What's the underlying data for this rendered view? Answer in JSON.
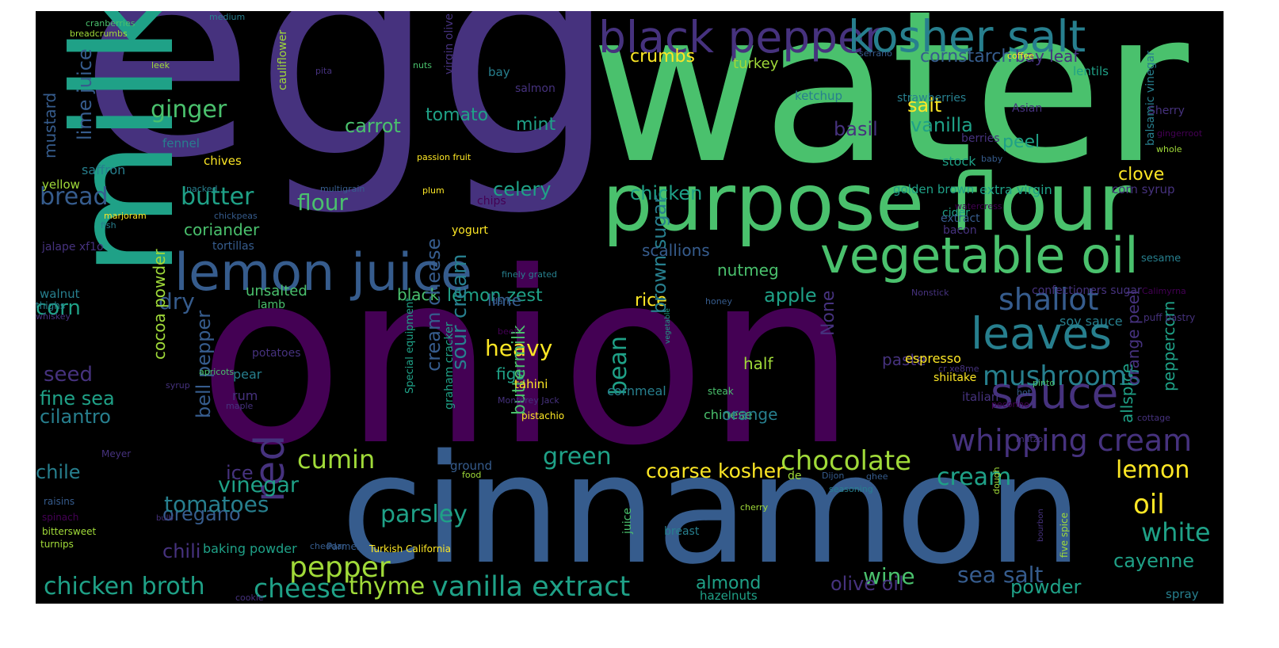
{
  "background": "#000000",
  "palette": {
    "p": "#440154",
    "i": "#46327e",
    "b": "#365c8d",
    "t": "#277f8e",
    "g": "#1fa187",
    "l": "#4ac16d",
    "y": "#a0da39",
    "z": "#fde725"
  },
  "words": [
    {
      "text": "egg",
      "size": 360,
      "color": "i"
    },
    {
      "text": "water",
      "size": 265,
      "color": "l"
    },
    {
      "text": "onion",
      "size": 300,
      "color": "p"
    },
    {
      "text": "milk",
      "size": 175,
      "color": "g",
      "rotate": true
    },
    {
      "text": "cinnamon",
      "size": 190,
      "color": "b"
    },
    {
      "text": "purpose flour",
      "size": 100,
      "color": "l"
    },
    {
      "text": "black pepper",
      "size": 55,
      "color": "i"
    },
    {
      "text": "kosher salt",
      "size": 55,
      "color": "t"
    },
    {
      "text": "lemon juice",
      "size": 65,
      "color": "b"
    },
    {
      "text": "vegetable oil",
      "size": 62,
      "color": "l"
    },
    {
      "text": "leaves",
      "size": 55,
      "color": "t"
    },
    {
      "text": "sauce",
      "size": 55,
      "color": "i"
    },
    {
      "text": "whipping cream",
      "size": 38,
      "color": "i"
    },
    {
      "text": "shallot",
      "size": 38,
      "color": "b"
    },
    {
      "text": "mushrooms",
      "size": 34,
      "color": "t"
    },
    {
      "text": "chocolate",
      "size": 34,
      "color": "y"
    },
    {
      "text": "vanilla extract",
      "size": 35,
      "color": "g"
    },
    {
      "text": "chicken broth",
      "size": 30,
      "color": "g"
    },
    {
      "text": "red",
      "size": 52,
      "color": "i",
      "rotate": true
    },
    {
      "text": "cheese",
      "size": 33,
      "color": "g"
    },
    {
      "text": "cumin",
      "size": 32,
      "color": "y"
    },
    {
      "text": "green",
      "size": 30,
      "color": "g"
    },
    {
      "text": "parsley",
      "size": 30,
      "color": "g"
    },
    {
      "text": "vinegar",
      "size": 27,
      "color": "g"
    },
    {
      "text": "coarse kosher",
      "size": 25,
      "color": "z"
    },
    {
      "text": "cream",
      "size": 30,
      "color": "g"
    },
    {
      "text": "lemon",
      "size": 30,
      "color": "z"
    },
    {
      "text": "oil",
      "size": 34,
      "color": "z"
    },
    {
      "text": "white",
      "size": 32,
      "color": "g"
    },
    {
      "text": "cayenne",
      "size": 24,
      "color": "g"
    },
    {
      "text": "sea salt",
      "size": 28,
      "color": "b"
    },
    {
      "text": "powder",
      "size": 24,
      "color": "g"
    },
    {
      "text": "wine",
      "size": 28,
      "color": "l"
    },
    {
      "text": "olive oil",
      "size": 24,
      "color": "i"
    },
    {
      "text": "almond",
      "size": 22,
      "color": "g"
    },
    {
      "text": "thyme",
      "size": 30,
      "color": "y"
    },
    {
      "text": "oregano",
      "size": 24,
      "color": "b"
    },
    {
      "text": "chili",
      "size": 24,
      "color": "i"
    },
    {
      "text": "pepper",
      "size": 36,
      "color": "y"
    },
    {
      "text": "ginger",
      "size": 30,
      "color": "l"
    },
    {
      "text": "bread",
      "size": 30,
      "color": "b"
    },
    {
      "text": "butter",
      "size": 30,
      "color": "g"
    },
    {
      "text": "corn",
      "size": 26,
      "color": "g"
    },
    {
      "text": "seed",
      "size": 26,
      "color": "i"
    },
    {
      "text": "fine sea",
      "size": 24,
      "color": "g"
    },
    {
      "text": "cilantro",
      "size": 24,
      "color": "t"
    },
    {
      "text": "chile",
      "size": 24,
      "color": "t"
    },
    {
      "text": "ice",
      "size": 24,
      "color": "i"
    },
    {
      "text": "tomatoes",
      "size": 28,
      "color": "t"
    },
    {
      "text": "carrot",
      "size": 24,
      "color": "l"
    },
    {
      "text": "flour",
      "size": 28,
      "color": "l"
    },
    {
      "text": "celery",
      "size": 24,
      "color": "g"
    },
    {
      "text": "mint",
      "size": 22,
      "color": "g"
    },
    {
      "text": "tomato",
      "size": 22,
      "color": "g"
    },
    {
      "text": "cornstarch",
      "size": 22,
      "color": "b"
    },
    {
      "text": "bay leaf",
      "size": 20,
      "color": "i"
    },
    {
      "text": "crumbs",
      "size": 22,
      "color": "z"
    },
    {
      "text": "salt",
      "size": 24,
      "color": "z"
    },
    {
      "text": "basil",
      "size": 24,
      "color": "i"
    },
    {
      "text": "vanilla",
      "size": 24,
      "color": "g"
    },
    {
      "text": "peel",
      "size": 22,
      "color": "g"
    },
    {
      "text": "clove",
      "size": 22,
      "color": "z"
    },
    {
      "text": "coriander",
      "size": 20,
      "color": "l"
    },
    {
      "text": "chicken",
      "size": 24,
      "color": "g"
    },
    {
      "text": "nutmeg",
      "size": 20,
      "color": "l"
    },
    {
      "text": "scallions",
      "size": 20,
      "color": "b"
    },
    {
      "text": "rice",
      "size": 22,
      "color": "z"
    },
    {
      "text": "apple",
      "size": 24,
      "color": "g"
    },
    {
      "text": "lemon zest",
      "size": 22,
      "color": "g"
    },
    {
      "text": "lime",
      "size": 20,
      "color": "b"
    },
    {
      "text": "unsalted",
      "size": 18,
      "color": "l"
    },
    {
      "text": "black",
      "size": 20,
      "color": "l"
    },
    {
      "text": "dry",
      "size": 28,
      "color": "b"
    },
    {
      "text": "heavy",
      "size": 28,
      "color": "z"
    },
    {
      "text": "figs",
      "size": 20,
      "color": "g"
    },
    {
      "text": "half",
      "size": 20,
      "color": "y"
    },
    {
      "text": "paste",
      "size": 20,
      "color": "i"
    },
    {
      "text": "bean",
      "size": 30,
      "color": "g",
      "rotate": true
    },
    {
      "text": "brown sugar",
      "size": 24,
      "color": "t",
      "rotate": true
    },
    {
      "text": "sour cream",
      "size": 26,
      "color": "t",
      "rotate": true
    },
    {
      "text": "buttermilk",
      "size": 22,
      "color": "l",
      "rotate": true
    },
    {
      "text": "cream cheese",
      "size": 24,
      "color": "b",
      "rotate": true
    },
    {
      "text": "cocoa powder",
      "size": 20,
      "color": "y",
      "rotate": true
    },
    {
      "text": "bell pepper",
      "size": 24,
      "color": "b",
      "rotate": true
    },
    {
      "text": "mustard",
      "size": 20,
      "color": "b",
      "rotate": true
    },
    {
      "text": "lime juice",
      "size": 24,
      "color": "b",
      "rotate": true
    },
    {
      "text": "peppercorn",
      "size": 20,
      "color": "g",
      "rotate": true
    },
    {
      "text": "allspice",
      "size": 20,
      "color": "g",
      "rotate": true
    },
    {
      "text": "orange peel",
      "size": 20,
      "color": "i",
      "rotate": true
    },
    {
      "text": "None",
      "size": 22,
      "color": "i",
      "rotate": true
    },
    {
      "text": "balsamic vinegar",
      "size": 14,
      "color": "t",
      "rotate": true
    },
    {
      "text": "cauliflower",
      "size": 14,
      "color": "y",
      "rotate": true
    },
    {
      "text": "virgin olive",
      "size": 14,
      "color": "i",
      "rotate": true
    },
    {
      "text": "Special equipment",
      "size": 13,
      "color": "g",
      "rotate": true
    },
    {
      "text": "graham cracker",
      "size": 14,
      "color": "g",
      "rotate": true
    },
    {
      "text": "juice",
      "size": 14,
      "color": "l",
      "rotate": true
    },
    {
      "text": "five spice",
      "size": 12,
      "color": "y",
      "rotate": true
    },
    {
      "text": "dough",
      "size": 11,
      "color": "y",
      "rotate": true
    },
    {
      "text": "bourbon",
      "size": 10,
      "color": "i",
      "rotate": true
    },
    {
      "text": "vegetable",
      "size": 9,
      "color": "g",
      "rotate": true
    },
    {
      "text": "baking powder",
      "size": 16,
      "color": "g"
    },
    {
      "text": "golden brown",
      "size": 15,
      "color": "g"
    },
    {
      "text": "extra virgin",
      "size": 16,
      "color": "g"
    },
    {
      "text": "corn syrup",
      "size": 15,
      "color": "i"
    },
    {
      "text": "confectioners sugar",
      "size": 14,
      "color": "i"
    },
    {
      "text": "soy sauce",
      "size": 16,
      "color": "t"
    },
    {
      "text": "ketchup",
      "size": 15,
      "color": "t"
    },
    {
      "text": "strawberries",
      "size": 14,
      "color": "t"
    },
    {
      "text": "turkey",
      "size": 18,
      "color": "y"
    },
    {
      "text": "bacon",
      "size": 14,
      "color": "i"
    },
    {
      "text": "cider",
      "size": 14,
      "color": "g"
    },
    {
      "text": "berries",
      "size": 14,
      "color": "i"
    },
    {
      "text": "stock",
      "size": 16,
      "color": "g"
    },
    {
      "text": "extract",
      "size": 14,
      "color": "b"
    },
    {
      "text": "espresso",
      "size": 16,
      "color": "z"
    },
    {
      "text": "shiitake",
      "size": 14,
      "color": "z"
    },
    {
      "text": "steak",
      "size": 12,
      "color": "l"
    },
    {
      "text": "chinese",
      "size": 16,
      "color": "l"
    },
    {
      "text": "orange",
      "size": 20,
      "color": "t"
    },
    {
      "text": "cornmeal",
      "size": 16,
      "color": "t"
    },
    {
      "text": "pear",
      "size": 16,
      "color": "t"
    },
    {
      "text": "rum",
      "size": 16,
      "color": "i"
    },
    {
      "text": "potatoes",
      "size": 14,
      "color": "i"
    },
    {
      "text": "lamb",
      "size": 14,
      "color": "l"
    },
    {
      "text": "tortillas",
      "size": 14,
      "color": "b"
    },
    {
      "text": "jalape xf1o",
      "size": 14,
      "color": "i"
    },
    {
      "text": "walnut",
      "size": 15,
      "color": "t"
    },
    {
      "text": "thighs",
      "size": 12,
      "color": "t"
    },
    {
      "text": "Meyer",
      "size": 12,
      "color": "i"
    },
    {
      "text": "raisins",
      "size": 12,
      "color": "b"
    },
    {
      "text": "spinach",
      "size": 12,
      "color": "p"
    },
    {
      "text": "bittersweet",
      "size": 12,
      "color": "y"
    },
    {
      "text": "turnips",
      "size": 12,
      "color": "y"
    },
    {
      "text": "bulb",
      "size": 10,
      "color": "i"
    },
    {
      "text": "cheddar",
      "size": 11,
      "color": "b"
    },
    {
      "text": "Parmesan",
      "size": 12,
      "color": "b"
    },
    {
      "text": "Turkish California",
      "size": 12,
      "color": "z"
    },
    {
      "text": "cookie",
      "size": 11,
      "color": "i"
    },
    {
      "text": "hazelnuts",
      "size": 15,
      "color": "g"
    },
    {
      "text": "spray",
      "size": 15,
      "color": "t"
    },
    {
      "text": "yellow",
      "size": 15,
      "color": "y"
    },
    {
      "text": "saffron",
      "size": 16,
      "color": "t"
    },
    {
      "text": "fennel",
      "size": 15,
      "color": "t"
    },
    {
      "text": "chives",
      "size": 15,
      "color": "z"
    },
    {
      "text": "leek",
      "size": 11,
      "color": "y"
    },
    {
      "text": "medium",
      "size": 11,
      "color": "t"
    },
    {
      "text": "cranberries",
      "size": 11,
      "color": "l"
    },
    {
      "text": "breadcrumbs",
      "size": 11,
      "color": "y"
    },
    {
      "text": "packed",
      "size": 11,
      "color": "t"
    },
    {
      "text": "marjoram",
      "size": 11,
      "color": "z"
    },
    {
      "text": "fish",
      "size": 11,
      "color": "t"
    },
    {
      "text": "chickpeas",
      "size": 11,
      "color": "b"
    },
    {
      "text": "multigrain",
      "size": 11,
      "color": "b"
    },
    {
      "text": "pita",
      "size": 11,
      "color": "i"
    },
    {
      "text": "bay",
      "size": 15,
      "color": "t"
    },
    {
      "text": "salmon",
      "size": 14,
      "color": "i"
    },
    {
      "text": "nuts",
      "size": 11,
      "color": "l"
    },
    {
      "text": "passion fruit",
      "size": 11,
      "color": "z"
    },
    {
      "text": "plum",
      "size": 11,
      "color": "z"
    },
    {
      "text": "chips",
      "size": 14,
      "color": "p"
    },
    {
      "text": "yogurt",
      "size": 14,
      "color": "z"
    },
    {
      "text": "finely grated",
      "size": 11,
      "color": "t"
    },
    {
      "text": "dark",
      "size": 11,
      "color": "b"
    },
    {
      "text": "beef",
      "size": 11,
      "color": "p"
    },
    {
      "text": "tahini",
      "size": 15,
      "color": "z"
    },
    {
      "text": "Monterey Jack",
      "size": 11,
      "color": "i"
    },
    {
      "text": "pistachio",
      "size": 12,
      "color": "z"
    },
    {
      "text": "whiskey",
      "size": 11,
      "color": "i"
    },
    {
      "text": "syrup",
      "size": 11,
      "color": "i"
    },
    {
      "text": "maple",
      "size": 11,
      "color": "i"
    },
    {
      "text": "apricots",
      "size": 11,
      "color": "l"
    },
    {
      "text": "food",
      "size": 11,
      "color": "y"
    },
    {
      "text": "ground",
      "size": 15,
      "color": "b"
    },
    {
      "text": "serrano",
      "size": 11,
      "color": "b"
    },
    {
      "text": "coffee",
      "size": 11,
      "color": "z"
    },
    {
      "text": "lentils",
      "size": 15,
      "color": "g"
    },
    {
      "text": "Asian",
      "size": 14,
      "color": "i"
    },
    {
      "text": "Sherry",
      "size": 14,
      "color": "i"
    },
    {
      "text": "gingerroot",
      "size": 11,
      "color": "p"
    },
    {
      "text": "whole",
      "size": 11,
      "color": "y"
    },
    {
      "text": "baby",
      "size": 11,
      "color": "b"
    },
    {
      "text": "watercress",
      "size": 11,
      "color": "p"
    },
    {
      "text": "sesame",
      "size": 13,
      "color": "t"
    },
    {
      "text": "honey",
      "size": 11,
      "color": "b"
    },
    {
      "text": "Calimyrna",
      "size": 11,
      "color": "p"
    },
    {
      "text": "puff pastry",
      "size": 12,
      "color": "i"
    },
    {
      "text": "Nonstick",
      "size": 11,
      "color": "i"
    },
    {
      "text": "cr xe8me",
      "size": 11,
      "color": "i"
    },
    {
      "text": "pinto",
      "size": 11,
      "color": "l"
    },
    {
      "text": "hot",
      "size": 11,
      "color": "b"
    },
    {
      "text": "italian",
      "size": 15,
      "color": "i"
    },
    {
      "text": "pecorino",
      "size": 11,
      "color": "p"
    },
    {
      "text": "cottage",
      "size": 11,
      "color": "i"
    },
    {
      "text": "matzo",
      "size": 11,
      "color": "i"
    },
    {
      "text": "cherry",
      "size": 11,
      "color": "y"
    },
    {
      "text": "de",
      "size": 14,
      "color": "y"
    },
    {
      "text": "Dijon",
      "size": 11,
      "color": "b"
    },
    {
      "text": "ghee",
      "size": 11,
      "color": "b"
    },
    {
      "text": "seasoning",
      "size": 11,
      "color": "t"
    },
    {
      "text": "breast",
      "size": 14,
      "color": "t"
    }
  ]
}
